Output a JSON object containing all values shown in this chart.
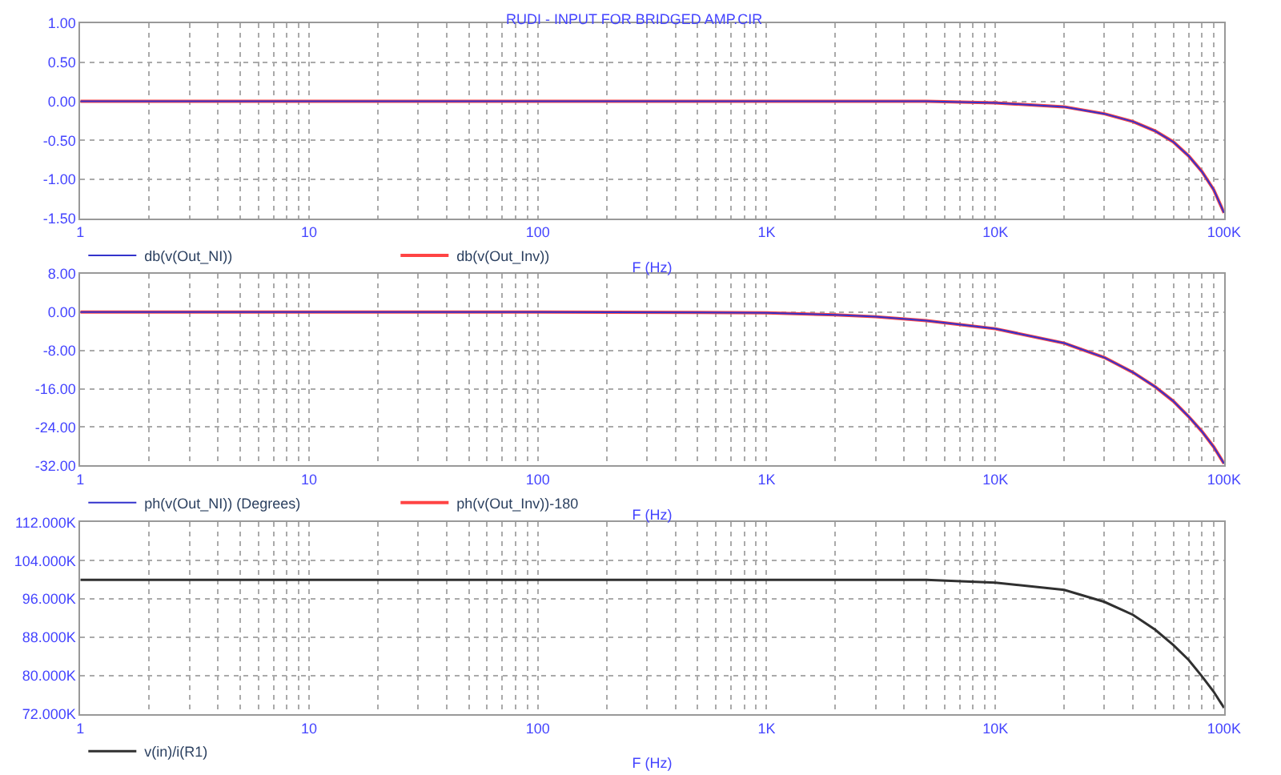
{
  "chart_data": [
    {
      "type": "line",
      "title": "RUDI - INPUT FOR BRIDGED AMP.CIR",
      "xlabel": "F (Hz)",
      "log": "x",
      "grid": true,
      "legend": "bottom left",
      "x": [
        1,
        10,
        100,
        500,
        1000,
        2000,
        3000,
        5000,
        10000,
        20000,
        30000,
        40000,
        50000,
        60000,
        70000,
        80000,
        90000,
        100000
      ],
      "xlim": [
        1,
        100000
      ],
      "xticks": [
        1,
        10,
        100,
        {
          "value": 1000,
          "label": "1K"
        },
        {
          "value": 10000,
          "label": "10K"
        },
        {
          "value": 100000,
          "label": "100K"
        }
      ],
      "ylim": [
        -1.5,
        1.0
      ],
      "yticks": [
        {
          "value": -1.5,
          "label": "-1.50"
        },
        {
          "value": -1.0,
          "label": "-1.00"
        },
        {
          "value": -0.5,
          "label": "-0.50"
        },
        {
          "value": 0,
          "label": "0.00"
        },
        {
          "value": 0.5,
          "label": "0.50"
        },
        {
          "value": 1.0,
          "label": "1.00"
        }
      ],
      "series": [
        {
          "name": "db(v(Out_NI))",
          "color": "#3333cc",
          "values": [
            0,
            0,
            0,
            0,
            0,
            0,
            0,
            0,
            -0.02,
            -0.07,
            -0.16,
            -0.26,
            -0.38,
            -0.52,
            -0.7,
            -0.9,
            -1.13,
            -1.43
          ]
        },
        {
          "name": "db(v(Out_Inv))",
          "color": "#ff4444",
          "values": [
            0,
            0,
            0,
            0,
            0,
            0,
            0,
            0,
            -0.02,
            -0.07,
            -0.16,
            -0.26,
            -0.38,
            -0.52,
            -0.7,
            -0.9,
            -1.13,
            -1.43
          ]
        }
      ]
    },
    {
      "type": "line",
      "xlabel": "F (Hz)",
      "log": "x",
      "grid": true,
      "legend": "bottom left",
      "x": [
        1,
        10,
        100,
        500,
        1000,
        2000,
        3000,
        5000,
        10000,
        20000,
        30000,
        40000,
        50000,
        60000,
        70000,
        80000,
        90000,
        100000
      ],
      "xlim": [
        1,
        100000
      ],
      "xticks": [
        1,
        10,
        100,
        {
          "value": 1000,
          "label": "1K"
        },
        {
          "value": 10000,
          "label": "10K"
        },
        {
          "value": 100000,
          "label": "100K"
        }
      ],
      "ylim": [
        -32,
        8
      ],
      "yticks": [
        {
          "value": -32,
          "label": "-32.00"
        },
        {
          "value": -24,
          "label": "-24.00"
        },
        {
          "value": -16,
          "label": "-16.00"
        },
        {
          "value": -8,
          "label": "-8.00"
        },
        {
          "value": 0,
          "label": "0.00"
        },
        {
          "value": 8,
          "label": "8.00"
        }
      ],
      "series": [
        {
          "name": "ph(v(Out_NI)) (Degrees)",
          "color": "#3333cc",
          "values": [
            0,
            0,
            0,
            -0.1,
            -0.2,
            -0.6,
            -1.0,
            -1.8,
            -3.5,
            -6.5,
            -9.5,
            -12.6,
            -15.6,
            -18.6,
            -21.8,
            -24.9,
            -28.1,
            -31.6
          ]
        },
        {
          "name": "ph(v(Out_Inv))-180",
          "color": "#ff4444",
          "values": [
            0,
            0,
            0,
            -0.1,
            -0.2,
            -0.6,
            -1.0,
            -1.8,
            -3.5,
            -6.5,
            -9.5,
            -12.6,
            -15.6,
            -18.6,
            -21.8,
            -24.9,
            -28.1,
            -31.6
          ]
        }
      ]
    },
    {
      "type": "line",
      "xlabel": "F (Hz)",
      "log": "x",
      "grid": true,
      "legend": "bottom left",
      "x": [
        1,
        10,
        100,
        500,
        1000,
        2000,
        3000,
        5000,
        10000,
        20000,
        30000,
        40000,
        50000,
        60000,
        70000,
        80000,
        90000,
        100000
      ],
      "xlim": [
        1,
        100000
      ],
      "xticks": [
        1,
        10,
        100,
        {
          "value": 1000,
          "label": "1K"
        },
        {
          "value": 10000,
          "label": "10K"
        },
        {
          "value": 100000,
          "label": "100K"
        }
      ],
      "ylim": [
        72000,
        112000
      ],
      "yticks": [
        {
          "value": 72000,
          "label": "72.000K"
        },
        {
          "value": 80000,
          "label": "80.000K"
        },
        {
          "value": 88000,
          "label": "88.000K"
        },
        {
          "value": 96000,
          "label": "96.000K"
        },
        {
          "value": 104000,
          "label": "104.000K"
        },
        {
          "value": 112000,
          "label": "112.000K"
        }
      ],
      "series": [
        {
          "name": "v(in)/i(R1)",
          "color": "#303030",
          "values": [
            100000,
            100000,
            100000,
            100000,
            100000,
            100000,
            100000,
            100000,
            99400,
            97900,
            95400,
            92700,
            89600,
            86400,
            83300,
            79900,
            76700,
            73300
          ]
        }
      ]
    }
  ]
}
